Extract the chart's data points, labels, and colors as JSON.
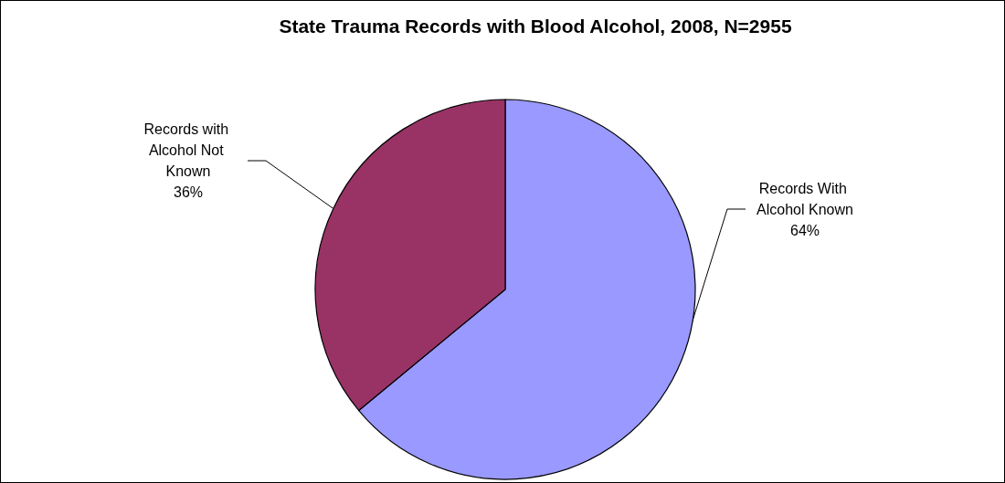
{
  "chart_data": {
    "type": "pie",
    "title": "State Trauma Records with Blood Alcohol, 2008, N=2955",
    "categories": [
      "Records With Alcohol Known",
      "Records with Alcohol Not Known"
    ],
    "values": [
      64,
      36
    ],
    "colors": [
      "#9999ff",
      "#993366"
    ],
    "value_labels": [
      "64%",
      "36%"
    ],
    "legend": false
  }
}
